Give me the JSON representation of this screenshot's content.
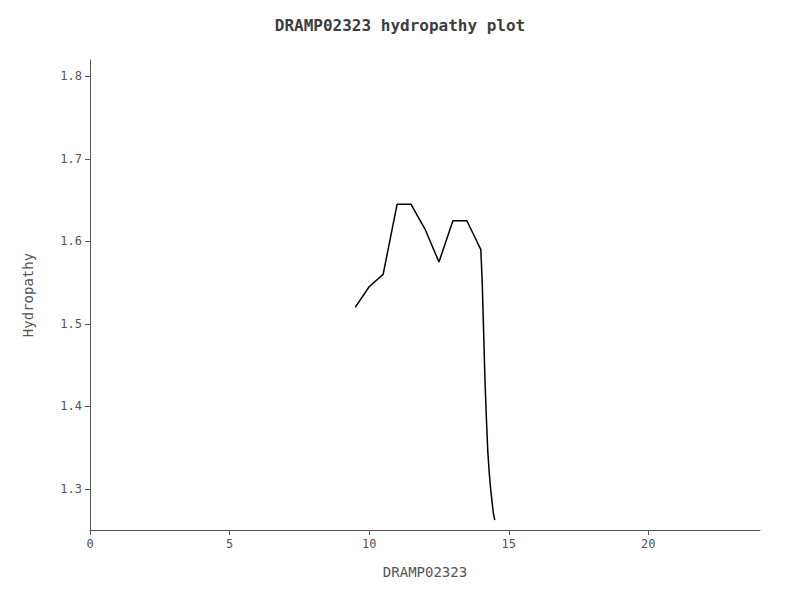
{
  "chart_data": {
    "type": "line",
    "title": "DRAMP02323 hydropathy plot",
    "xlabel": "DRAMP02323",
    "ylabel": "Hydropathy",
    "x": [
      9.5,
      10.0,
      10.5,
      11.0,
      11.5,
      12.0,
      12.5,
      13.0,
      13.5,
      14.0,
      14.05,
      14.1,
      14.15,
      14.2,
      14.25,
      14.3,
      14.35,
      14.4,
      14.45,
      14.5
    ],
    "values": [
      1.52,
      1.545,
      1.56,
      1.645,
      1.645,
      1.615,
      1.575,
      1.625,
      1.625,
      1.59,
      1.55,
      1.49,
      1.43,
      1.385,
      1.345,
      1.32,
      1.3,
      1.285,
      1.27,
      1.262
    ],
    "color": "#000000",
    "xlim": [
      0,
      24
    ],
    "xticks": [
      0,
      5,
      10,
      15,
      20
    ],
    "ylim": [
      1.25,
      1.82
    ],
    "yticks": [
      1.3,
      1.4,
      1.5,
      1.6,
      1.7,
      1.8
    ],
    "grid": false
  }
}
